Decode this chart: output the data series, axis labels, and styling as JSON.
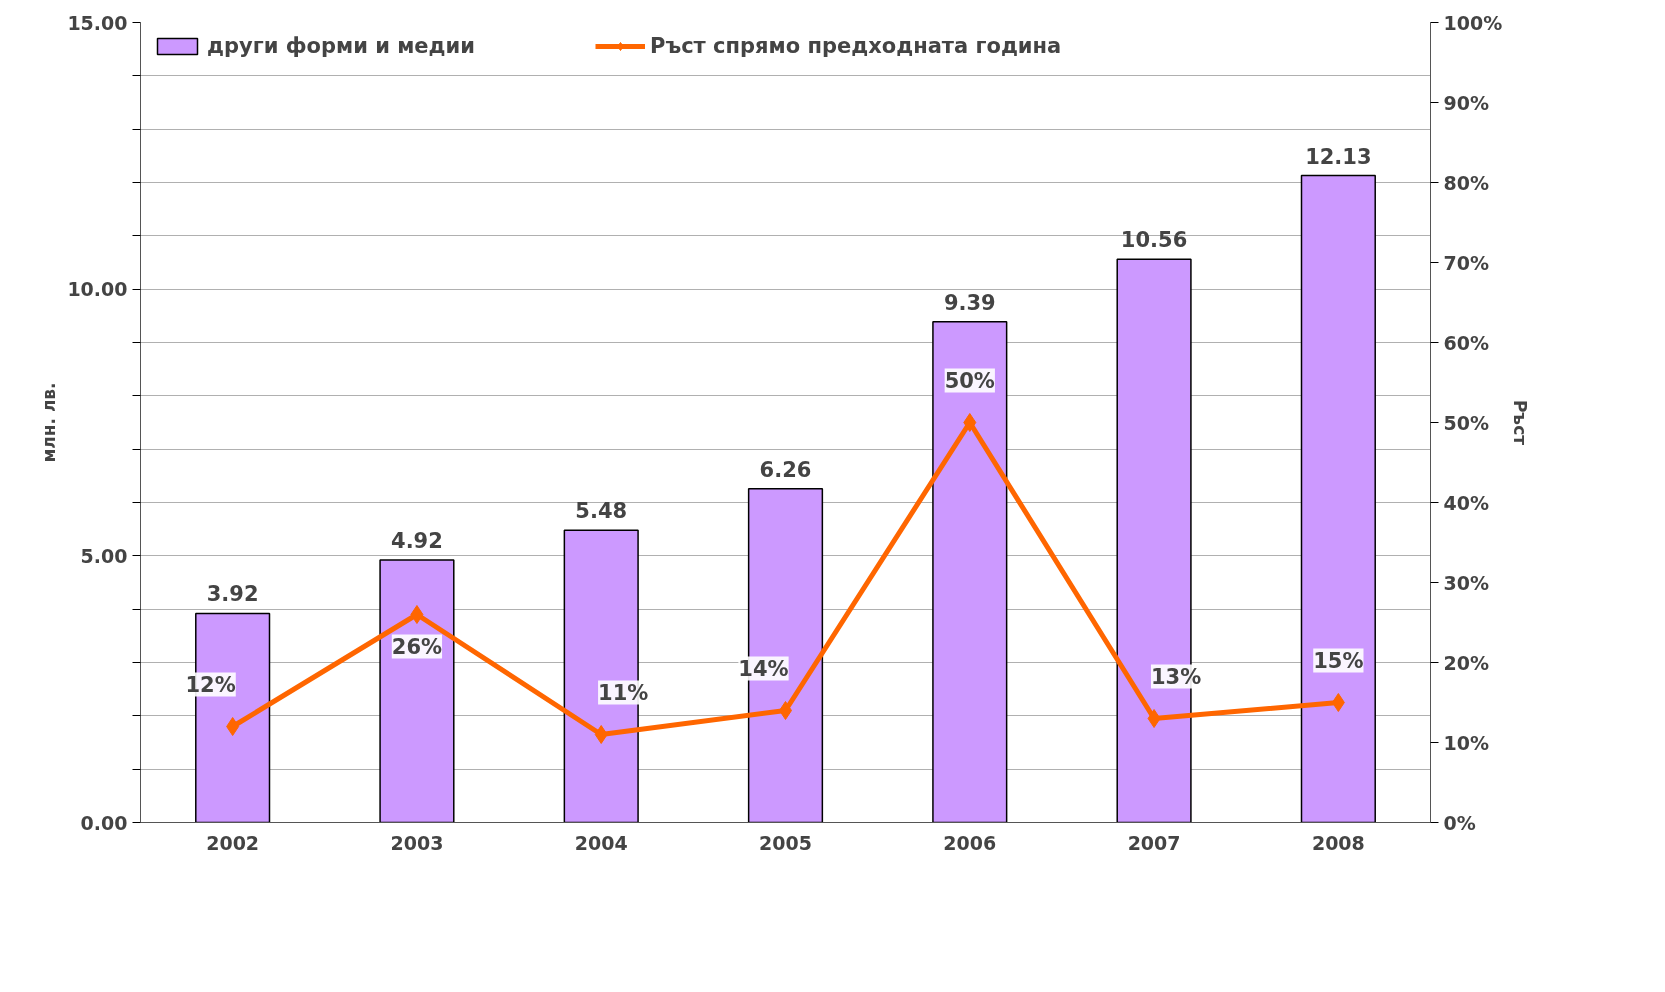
{
  "chart_data": {
    "type": "bar",
    "categories": [
      "2002",
      "2003",
      "2004",
      "2005",
      "2006",
      "2007",
      "2008"
    ],
    "ylabel": "млн. лв.",
    "y2label": "Ръст",
    "series": [
      {
        "name": "други форми и медии",
        "color": "#cc99ff",
        "values": [
          3.92,
          4.92,
          5.48,
          6.26,
          9.39,
          10.56,
          12.13
        ],
        "value_labels": [
          "3.92",
          "4.92",
          "5.48",
          "6.26",
          "9.39",
          "10.56",
          "12.13"
        ]
      },
      {
        "name": "Ръст спрямо предходната година",
        "type": "line",
        "axis": "y2",
        "color": "#ff6600",
        "values": [
          12,
          26,
          11,
          14,
          50,
          13,
          15
        ],
        "value_labels": [
          "12%",
          "26%",
          "11%",
          "14%",
          "50%",
          "13%",
          "15%"
        ]
      }
    ],
    "ylim": [
      0,
      15
    ],
    "yticks": [
      {
        "value": 0,
        "label": "0.00"
      },
      {
        "value": 1,
        "label": null
      },
      {
        "value": 2,
        "label": null
      },
      {
        "value": 3,
        "label": null
      },
      {
        "value": 4,
        "label": null
      },
      {
        "value": 5,
        "label": "5.00"
      },
      {
        "value": 6,
        "label": null
      },
      {
        "value": 7,
        "label": null
      },
      {
        "value": 8,
        "label": null
      },
      {
        "value": 9,
        "label": null
      },
      {
        "value": 10,
        "label": "10.00"
      },
      {
        "value": 11,
        "label": null
      },
      {
        "value": 12,
        "label": null
      },
      {
        "value": 13,
        "label": null
      },
      {
        "value": 14,
        "label": null
      },
      {
        "value": 15,
        "label": "15.00"
      }
    ],
    "y2lim": [
      0,
      100
    ],
    "y2ticks": [
      {
        "value": 0,
        "label": "0%"
      },
      {
        "value": 10,
        "label": "10%"
      },
      {
        "value": 20,
        "label": "20%"
      },
      {
        "value": 30,
        "label": "30%"
      },
      {
        "value": 40,
        "label": "40%"
      },
      {
        "value": 50,
        "label": "50%"
      },
      {
        "value": 60,
        "label": "60%"
      },
      {
        "value": 70,
        "label": "70%"
      },
      {
        "value": 80,
        "label": "80%"
      },
      {
        "value": 90,
        "label": "90%"
      },
      {
        "value": 100,
        "label": "100%"
      }
    ],
    "grid": "y",
    "legend": "top left",
    "marker": "diamond",
    "line_style": "solid"
  }
}
